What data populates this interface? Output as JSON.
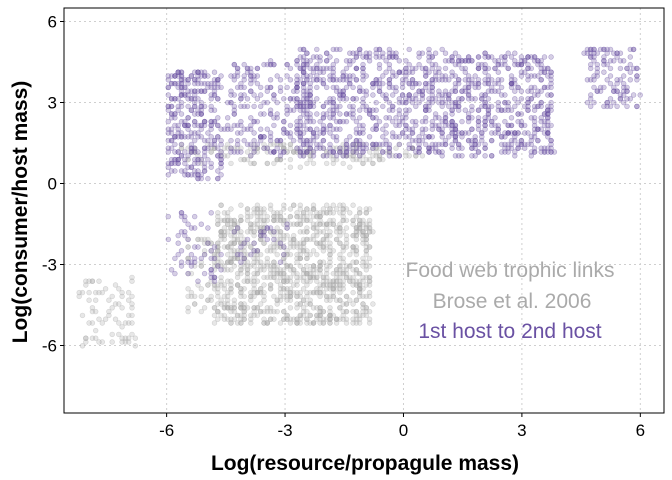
{
  "chart_data": {
    "type": "scatter",
    "xlabel": "Log(resource/propagule mass)",
    "ylabel": "Log(consumer/host mass)",
    "xlim": [
      -8.6,
      6.6
    ],
    "ylim": [
      -8.5,
      6.5
    ],
    "x_ticks": [
      "-6",
      "-3",
      "0",
      "3",
      "6"
    ],
    "y_ticks": [
      "6",
      "3",
      "0",
      "-3",
      "-6"
    ],
    "grid": true,
    "annotations": [
      {
        "text": "Food web trophic links",
        "color": "#aaaaaa"
      },
      {
        "text": "Brose et al. 2006",
        "color": "#aaaaaa"
      },
      {
        "text": "1st host to 2nd host",
        "color": "#6a51a3"
      }
    ],
    "series": [
      {
        "color": "#aaaaaa",
        "clusters": [
          {
            "x": [
              -4.8,
              -0.8
            ],
            "y": [
              -5.2,
              -0.8
            ],
            "density": 1.0
          },
          {
            "x": [
              -5.5,
              -4.8
            ],
            "y": [
              -4.8,
              -2.0
            ],
            "density": 0.4
          },
          {
            "x": [
              -8.2,
              -6.8
            ],
            "y": [
              -6.0,
              -3.5
            ],
            "density": 0.35
          },
          {
            "x": [
              -5.8,
              -0.5
            ],
            "y": [
              0.6,
              1.5
            ],
            "density": 0.4
          },
          {
            "x": [
              -5.0,
              0.5
            ],
            "y": [
              1.0,
              1.4
            ],
            "density": 0.5
          }
        ]
      },
      {
        "color": "#6a51a3",
        "clusters": [
          {
            "x": [
              -6.0,
              -4.6
            ],
            "y": [
              0.2,
              4.2
            ],
            "density": 0.9
          },
          {
            "x": [
              -4.5,
              -2.3
            ],
            "y": [
              1.0,
              4.5
            ],
            "density": 0.5
          },
          {
            "x": [
              -2.7,
              1.2
            ],
            "y": [
              1.0,
              5.0
            ],
            "density": 0.7
          },
          {
            "x": [
              1.2,
              3.8
            ],
            "y": [
              1.0,
              4.8
            ],
            "density": 0.8
          },
          {
            "x": [
              4.6,
              6.0
            ],
            "y": [
              2.8,
              5.0
            ],
            "density": 0.6
          },
          {
            "x": [
              -6.0,
              -4.6
            ],
            "y": [
              -3.6,
              -1.0
            ],
            "density": 0.25
          },
          {
            "x": [
              -4.4,
              -2.8
            ],
            "y": [
              -3.0,
              -1.5
            ],
            "density": 0.2
          }
        ]
      }
    ]
  }
}
